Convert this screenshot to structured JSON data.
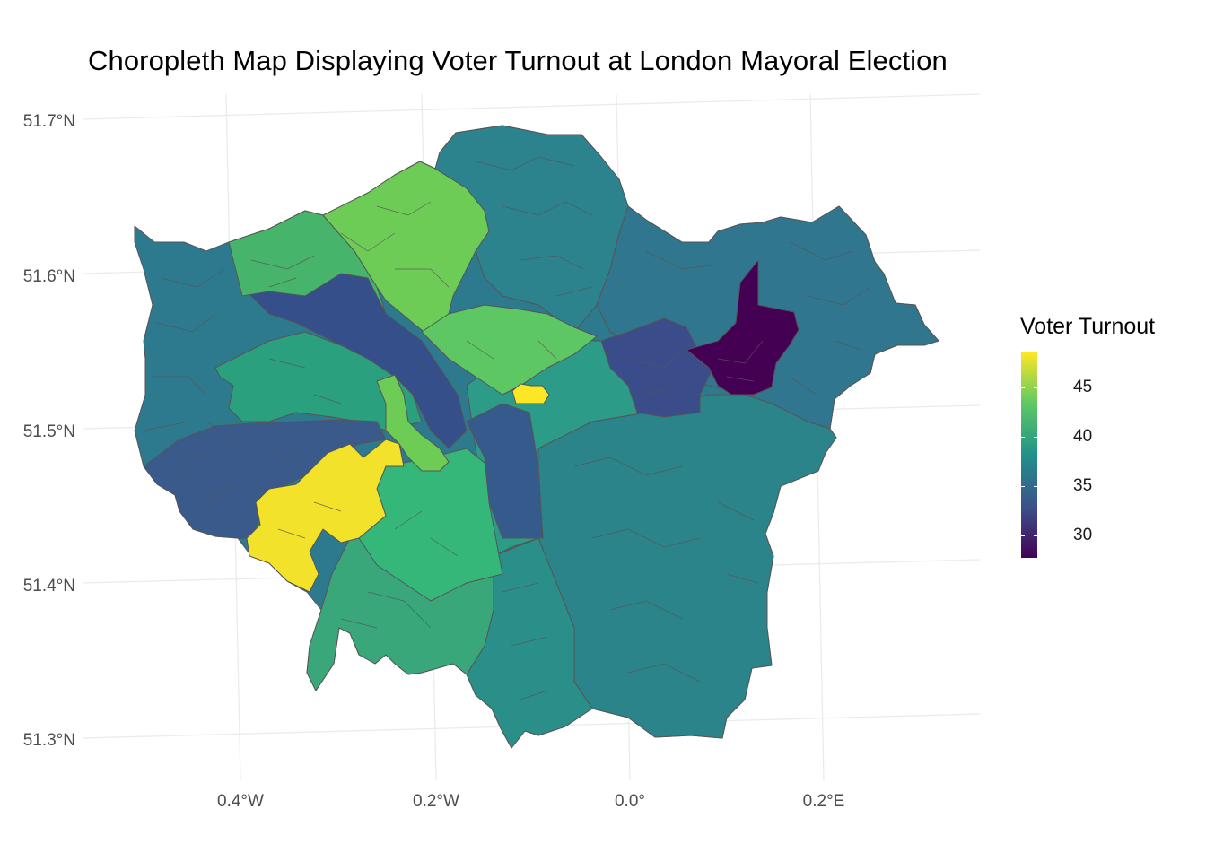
{
  "title": "Choropleth Map Displaying Voter Turnout at London Mayoral Election",
  "axes": {
    "lat_labels": [
      "51.7°N",
      "51.6°N",
      "51.5°N",
      "51.4°N",
      "51.3°N"
    ],
    "lon_labels": [
      "0.4°W",
      "0.2°W",
      "0.0°",
      "0.2°E"
    ]
  },
  "legend": {
    "title": "Voter Turnout",
    "labels": [
      "45",
      "40",
      "35",
      "30"
    ],
    "color_scale": [
      "#440154",
      "#3b528b",
      "#21908c",
      "#5dc863",
      "#fde725"
    ]
  },
  "map_data": {
    "type": "choropleth",
    "variable": "Voter Turnout",
    "range": [
      27.5,
      49
    ],
    "regions_fill": {
      "outer_west": "#2d7a8e",
      "north_central_west": "#47b46b",
      "north_barnet": "#6dcc56",
      "enfield_haringey_east": "#2c838d",
      "west_central": "#344f8a",
      "ealing_brent": "#2aa07f",
      "camden_islington": "#5dc863",
      "city": "#fde725",
      "hammersmith": "#3a5a8c",
      "richmond_kingston": "#f2e32a",
      "wandsworth_merton": "#35b779",
      "south_sutton": "#3aa77a",
      "croydon_south": "#2b8f89",
      "east_central": "#2c9b87",
      "newham": "#3b4c8a",
      "barking": "#440154",
      "havering_redbridge": "#30768e",
      "bexley_bromley": "#2b8489",
      "lambeth": "#355b8c"
    }
  }
}
